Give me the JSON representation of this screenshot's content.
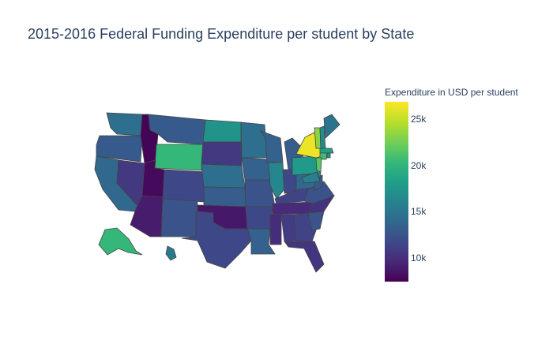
{
  "title": "2015-2016 Federal Funding Expenditure per student by State",
  "colorbar": {
    "title": "Expenditure in USD per student",
    "scale": "viridis",
    "colors": [
      "#440154",
      "#482878",
      "#3e4989",
      "#31688e",
      "#26828e",
      "#1f9e89",
      "#35b779",
      "#6ece58",
      "#b5de2b",
      "#fde725"
    ],
    "range": [
      7500,
      27000
    ],
    "ticks": [
      {
        "value": 10000,
        "label": "10k"
      },
      {
        "value": 15000,
        "label": "15k"
      },
      {
        "value": 20000,
        "label": "20k"
      },
      {
        "value": 25000,
        "label": "25k"
      }
    ]
  },
  "chart_data": {
    "type": "choropleth",
    "title": "2015-2016 Federal Funding Expenditure per student by State",
    "value_label": "Expenditure in USD per student",
    "range": [
      7500,
      27000
    ],
    "states": [
      {
        "code": "WA",
        "value": 14500
      },
      {
        "code": "OR",
        "value": 13000
      },
      {
        "code": "CA",
        "value": 14000
      },
      {
        "code": "NV",
        "value": 10800
      },
      {
        "code": "ID",
        "value": 7700
      },
      {
        "code": "MT",
        "value": 13000
      },
      {
        "code": "WY",
        "value": 20500
      },
      {
        "code": "UT",
        "value": 8000
      },
      {
        "code": "AZ",
        "value": 9000
      },
      {
        "code": "CO",
        "value": 11800
      },
      {
        "code": "NM",
        "value": 12500
      },
      {
        "code": "ND",
        "value": 17500
      },
      {
        "code": "SD",
        "value": 10800
      },
      {
        "code": "NE",
        "value": 14500
      },
      {
        "code": "KS",
        "value": 13200
      },
      {
        "code": "OK",
        "value": 8800
      },
      {
        "code": "TX",
        "value": 11800
      },
      {
        "code": "MN",
        "value": 14500
      },
      {
        "code": "IA",
        "value": 13500
      },
      {
        "code": "MO",
        "value": 12500
      },
      {
        "code": "AR",
        "value": 11800
      },
      {
        "code": "LA",
        "value": 13500
      },
      {
        "code": "WI",
        "value": 13500
      },
      {
        "code": "IL",
        "value": 16500
      },
      {
        "code": "MI",
        "value": 13200
      },
      {
        "code": "IN",
        "value": 11800
      },
      {
        "code": "OH",
        "value": 14000
      },
      {
        "code": "KY",
        "value": 11500
      },
      {
        "code": "TN",
        "value": 9800
      },
      {
        "code": "MS",
        "value": 10000
      },
      {
        "code": "AL",
        "value": 11000
      },
      {
        "code": "GA",
        "value": 11500
      },
      {
        "code": "FL",
        "value": 10500
      },
      {
        "code": "SC",
        "value": 12500
      },
      {
        "code": "NC",
        "value": 10300
      },
      {
        "code": "VA",
        "value": 12500
      },
      {
        "code": "WV",
        "value": 13000
      },
      {
        "code": "PA",
        "value": 18000
      },
      {
        "code": "NY",
        "value": 26500
      },
      {
        "code": "VT",
        "value": 23500
      },
      {
        "code": "NH",
        "value": 17000
      },
      {
        "code": "ME",
        "value": 15000
      },
      {
        "code": "MA",
        "value": 18500
      },
      {
        "code": "CT",
        "value": 21000
      },
      {
        "code": "RI",
        "value": 17000
      },
      {
        "code": "NJ",
        "value": 22000
      },
      {
        "code": "DE",
        "value": 16500
      },
      {
        "code": "MD",
        "value": 16000
      },
      {
        "code": "AK",
        "value": 20500
      },
      {
        "code": "HI",
        "value": 15500
      }
    ]
  }
}
